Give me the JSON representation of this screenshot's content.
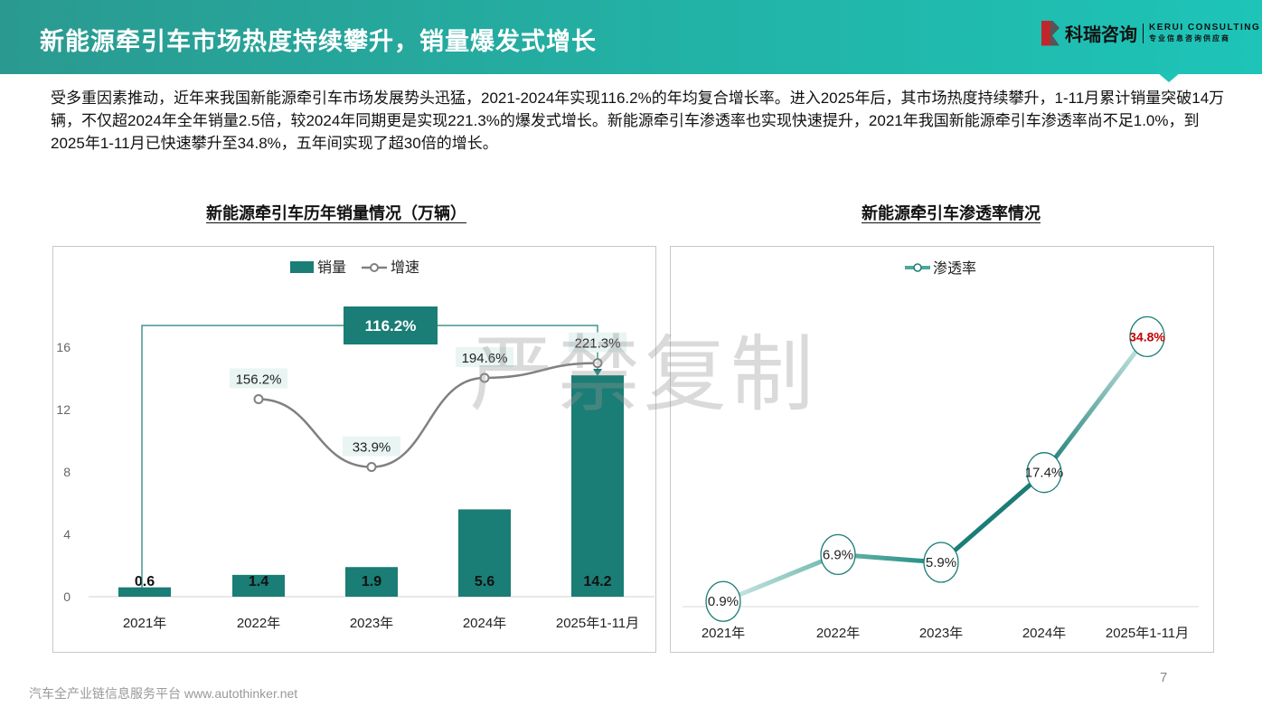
{
  "header": {
    "title": "新能源牵引车市场热度持续攀升，销量爆发式增长",
    "logo_cn": "科瑞咨询",
    "logo_en": "KERUI CONSULTING",
    "logo_tagline": "专业信息咨询供应商"
  },
  "intro": "受多重因素推动，近年来我国新能源牵引车市场发展势头迅猛，2021-2024年实现116.2%的年均复合增长率。进入2025年后，其市场热度持续攀升，1-11月累计销量突破14万辆，不仅超2024年全年销量2.5倍，较2024年同期更是实现221.3%的爆发式增长。新能源牵引车渗透率也实现快速提升，2021年我国新能源牵引车渗透率尚不足1.0%，到2025年1-11月已快速攀升至34.8%，五年间实现了超30倍的增长。",
  "watermark": "严禁复制",
  "footer": "汽车全产业链信息服务平台 www.autothinker.net",
  "page_number": "7",
  "colors": {
    "bar": "#1a7d76",
    "line": "#808080",
    "accent": "#1a7d76",
    "highlight": "#c00000"
  },
  "chart_data": [
    {
      "type": "bar",
      "title": "新能源牵引车历年销量情况（万辆）",
      "categories": [
        "2021年",
        "2022年",
        "2023年",
        "2024年",
        "2025年1-11月"
      ],
      "series": [
        {
          "name": "销量",
          "type": "bar",
          "values": [
            0.6,
            1.4,
            1.9,
            5.6,
            14.2
          ],
          "labels": [
            "0.6",
            "1.4",
            "1.9",
            "5.6",
            "14.2"
          ]
        },
        {
          "name": "增速",
          "type": "line",
          "values": [
            null,
            156.2,
            33.9,
            194.6,
            221.3
          ],
          "labels": [
            "",
            "156.2%",
            "33.9%",
            "194.6%",
            "221.3%"
          ]
        }
      ],
      "yticks": [
        "0",
        "4",
        "8",
        "12",
        "16"
      ],
      "ylim": [
        0,
        16
      ],
      "y2lim": [
        -200,
        250
      ],
      "annotation": "116.2%",
      "legend": "top"
    },
    {
      "type": "line",
      "title": "新能源牵引车渗透率情况",
      "categories": [
        "2021年",
        "2022年",
        "2023年",
        "2024年",
        "2025年1-11月"
      ],
      "series": [
        {
          "name": "渗透率",
          "values": [
            0.9,
            6.9,
            5.9,
            17.4,
            34.8
          ],
          "labels": [
            "0.9%",
            "6.9%",
            "5.9%",
            "17.4%",
            "34.8%"
          ]
        }
      ],
      "ylim": [
        0,
        36
      ],
      "legend": "top"
    }
  ]
}
